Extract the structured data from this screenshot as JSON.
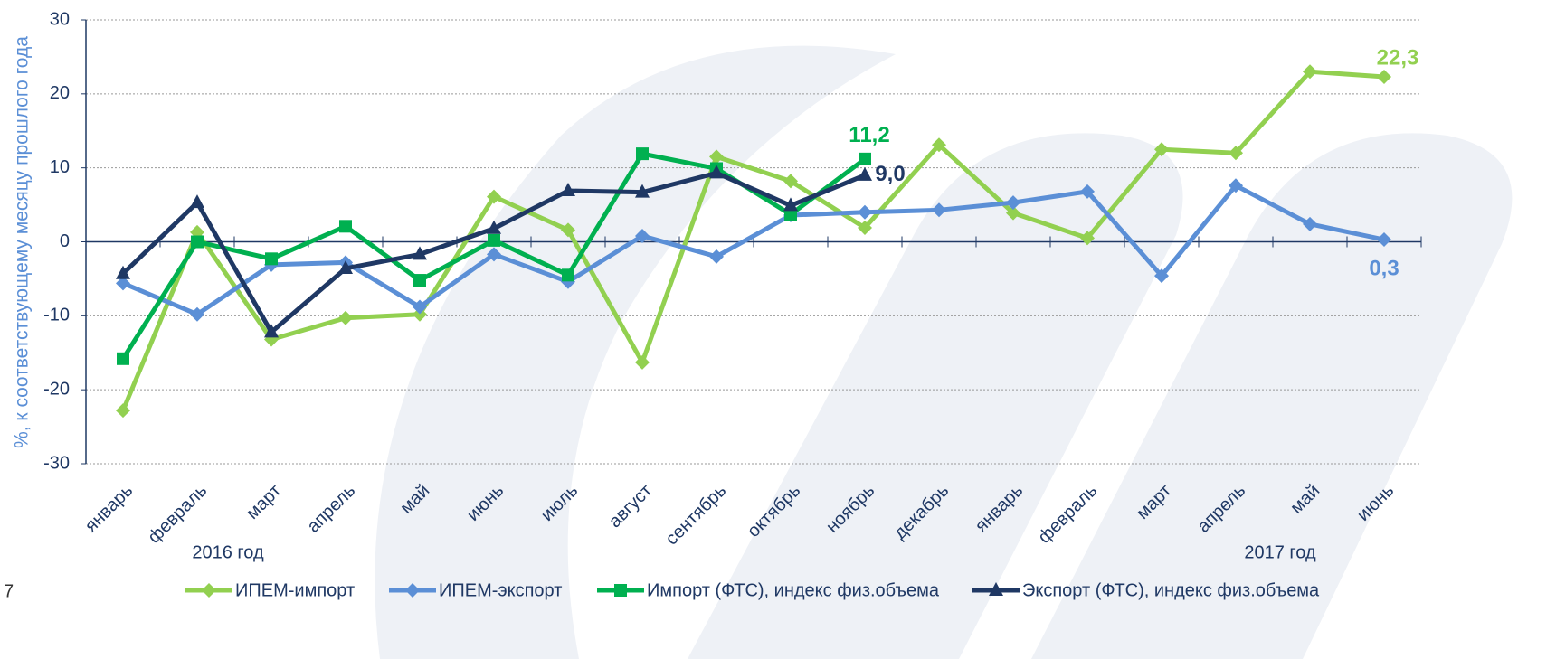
{
  "chart_data": {
    "type": "line",
    "y_label": "%, к соответствующему месяцу прошлого года",
    "categories": [
      "январь",
      "февраль",
      "март",
      "апрель",
      "май",
      "июнь",
      "июль",
      "август",
      "сентябрь",
      "октябрь",
      "ноябрь",
      "декабрь",
      "январь",
      "февраль",
      "март",
      "апрель",
      "май",
      "июнь"
    ],
    "year_labels": [
      "2016 год",
      "2017 год"
    ],
    "page_number": "7",
    "ylim": [
      -30,
      30
    ],
    "yticks": [
      -30,
      -20,
      -10,
      0,
      10,
      20,
      30
    ],
    "grid": true,
    "legend": "bottom",
    "series": [
      {
        "name": "ИПЕМ-импорт",
        "color": "#92d050",
        "marker": "diamond",
        "values": [
          -22.8,
          1.3,
          -13.2,
          -10.3,
          -9.8,
          6.1,
          1.6,
          -16.3,
          11.5,
          8.2,
          1.9,
          13.1,
          3.9,
          0.5,
          12.5,
          12.0,
          23.0,
          22.3
        ],
        "value_labels": [
          null,
          null,
          null,
          null,
          null,
          null,
          null,
          null,
          null,
          null,
          null,
          null,
          null,
          null,
          null,
          null,
          null,
          "22,3"
        ]
      },
      {
        "name": "ИПЕМ-экспорт",
        "color": "#5b8fd6",
        "marker": "diamond",
        "values": [
          -5.6,
          -9.8,
          -3.1,
          -2.8,
          -8.8,
          -1.7,
          -5.4,
          0.8,
          -2.0,
          3.6,
          4.0,
          4.3,
          5.3,
          6.8,
          -4.6,
          7.6,
          2.4,
          0.3
        ],
        "value_labels": [
          null,
          null,
          null,
          null,
          null,
          null,
          null,
          null,
          null,
          null,
          null,
          null,
          null,
          null,
          null,
          null,
          null,
          "0,3"
        ]
      },
      {
        "name": "Импорт (ФТС), индекс физ.объема",
        "color": "#00b050",
        "marker": "square",
        "values": [
          -15.8,
          0.0,
          -2.3,
          2.1,
          -5.2,
          0.2,
          -4.5,
          11.9,
          9.9,
          3.7,
          11.2,
          null,
          null,
          null,
          null,
          null,
          null,
          null
        ],
        "value_labels": [
          null,
          null,
          null,
          null,
          null,
          null,
          null,
          null,
          null,
          null,
          "11,2",
          null,
          null,
          null,
          null,
          null,
          null,
          null
        ]
      },
      {
        "name": "Экспорт (ФТС), индекс физ.объема",
        "color": "#1f3864",
        "marker": "triangle",
        "values": [
          -4.3,
          5.3,
          -12.2,
          -3.6,
          -1.7,
          1.8,
          6.9,
          6.7,
          9.3,
          4.9,
          9.0,
          null,
          null,
          null,
          null,
          null,
          null,
          null
        ],
        "value_labels": [
          null,
          null,
          null,
          null,
          null,
          null,
          null,
          null,
          null,
          null,
          "9,0",
          null,
          null,
          null,
          null,
          null,
          null,
          null
        ]
      }
    ]
  }
}
